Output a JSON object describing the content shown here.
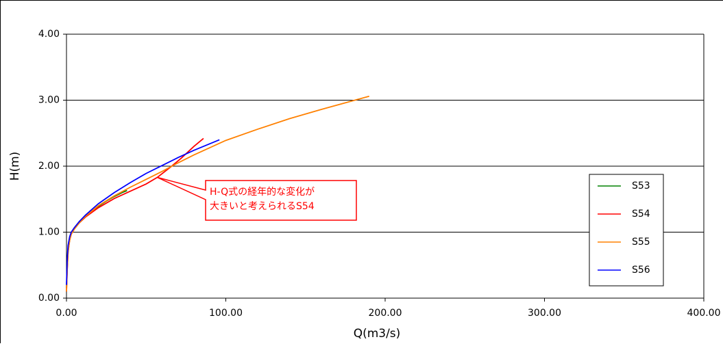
{
  "chart_data": {
    "type": "line",
    "xlabel": "Q(m3/s)",
    "ylabel": "H(m)",
    "xlim": [
      0,
      400
    ],
    "ylim": [
      0,
      4
    ],
    "xticks": [
      {
        "value": 0,
        "label": "0.00"
      },
      {
        "value": 100,
        "label": "100.00"
      },
      {
        "value": 200,
        "label": "200.00"
      },
      {
        "value": 300,
        "label": "300.00"
      },
      {
        "value": 400,
        "label": "400.00"
      }
    ],
    "yticks": [
      {
        "value": 0,
        "label": "0.00"
      },
      {
        "value": 1,
        "label": "1.00"
      },
      {
        "value": 2,
        "label": "2.00"
      },
      {
        "value": 3,
        "label": "3.00"
      },
      {
        "value": 4,
        "label": "4.00"
      }
    ],
    "grid": true,
    "legend": "right",
    "annotation": {
      "lines": [
        "H-Q式の経年的な変化が",
        "大きいと考えられるS54"
      ],
      "color": "#ff0000"
    },
    "series": [
      {
        "name": "S53",
        "color": "#008000",
        "x": [
          0,
          0.5,
          1,
          2,
          3,
          5,
          8,
          12,
          16,
          20,
          25,
          30,
          35,
          38
        ],
        "values": [
          0.15,
          0.5,
          0.75,
          0.9,
          0.98,
          1.06,
          1.14,
          1.24,
          1.32,
          1.39,
          1.47,
          1.54,
          1.6,
          1.63
        ]
      },
      {
        "name": "S54",
        "color": "#ff0000",
        "x": [
          0,
          0.5,
          1,
          2,
          3,
          5,
          8,
          12,
          16,
          20,
          25,
          30,
          40,
          50,
          57,
          65,
          72,
          80,
          86
        ],
        "values": [
          0.1,
          0.45,
          0.7,
          0.88,
          0.97,
          1.05,
          1.14,
          1.23,
          1.3,
          1.37,
          1.44,
          1.51,
          1.62,
          1.73,
          1.83,
          1.98,
          2.12,
          2.3,
          2.42
        ]
      },
      {
        "name": "S55",
        "color": "#ff8000",
        "x": [
          0,
          0.5,
          1,
          2,
          3,
          5,
          8,
          12,
          20,
          30,
          40,
          50,
          60,
          70,
          80,
          100,
          120,
          140,
          160,
          190
        ],
        "values": [
          0.1,
          0.45,
          0.7,
          0.88,
          0.97,
          1.05,
          1.14,
          1.24,
          1.4,
          1.55,
          1.68,
          1.8,
          1.92,
          2.05,
          2.17,
          2.39,
          2.56,
          2.72,
          2.86,
          3.06
        ]
      },
      {
        "name": "S56",
        "color": "#0000ff",
        "x": [
          0,
          0.5,
          1,
          2,
          3,
          5,
          8,
          12,
          20,
          30,
          40,
          50,
          60,
          70,
          80,
          96
        ],
        "values": [
          0.2,
          0.6,
          0.8,
          0.93,
          1.0,
          1.07,
          1.16,
          1.26,
          1.43,
          1.6,
          1.75,
          1.89,
          2.01,
          2.13,
          2.24,
          2.4
        ]
      }
    ]
  }
}
